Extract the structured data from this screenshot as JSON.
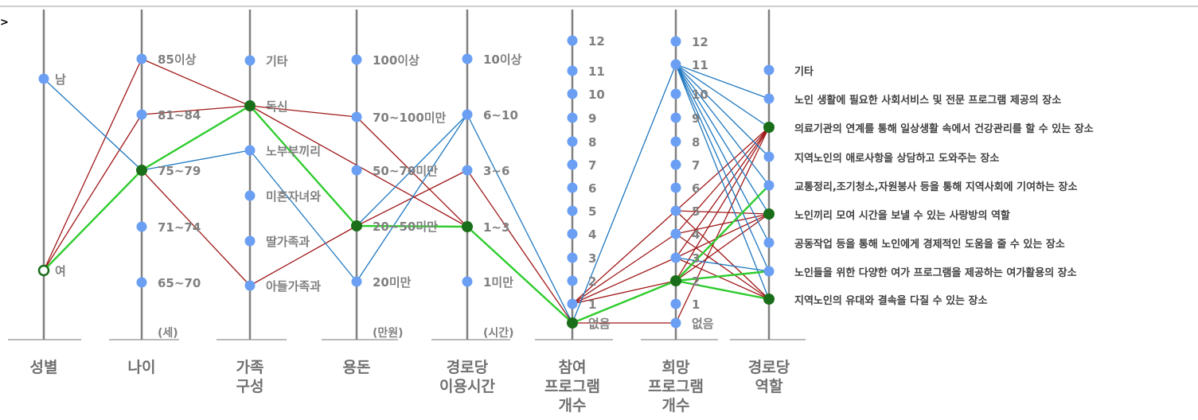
{
  "chart_data": {
    "type": "parallel-coordinates",
    "colors": {
      "axis": "#808080",
      "point": "#6b9ff3",
      "node": "#1a6e1a",
      "red": "#a01818",
      "blue": "#1f78c0",
      "green": "#2ecc2e"
    },
    "axes": [
      {
        "id": "gender",
        "title_lines": [
          "성별"
        ],
        "unit": "",
        "ticks": [
          "여",
          "남"
        ]
      },
      {
        "id": "age",
        "title_lines": [
          "나이"
        ],
        "unit": "(세)",
        "ticks": [
          "65~70",
          "71~74",
          "75~79",
          "81~84",
          "85이상"
        ]
      },
      {
        "id": "family",
        "title_lines": [
          "가족",
          "구성"
        ],
        "unit": "",
        "ticks": [
          "아들가족과",
          "딸가족과",
          "미혼자녀와",
          "노부부끼리",
          "독신",
          "기타"
        ]
      },
      {
        "id": "money",
        "title_lines": [
          "용돈"
        ],
        "unit": "(만원)",
        "ticks": [
          "20미만",
          "20~50미만",
          "50~70미만",
          "70~100미만",
          "100이상"
        ]
      },
      {
        "id": "hours",
        "title_lines": [
          "경로당",
          "이용시간"
        ],
        "unit": "(시간)",
        "ticks": [
          "1미만",
          "1~3",
          "3~6",
          "6~10",
          "10이상"
        ]
      },
      {
        "id": "join",
        "title_lines": [
          "참여",
          "프로그램",
          "개수"
        ],
        "unit": "",
        "ticks": [
          "없음",
          "1",
          "2",
          "3",
          "4",
          "5",
          "6",
          "7",
          "8",
          "9",
          "10",
          "11",
          "12"
        ]
      },
      {
        "id": "want",
        "title_lines": [
          "희망",
          "프로그램",
          "개수"
        ],
        "unit": "",
        "ticks": [
          "없음",
          "1",
          "2",
          "3",
          "4",
          "5",
          "6",
          "7",
          "8",
          "9",
          "10",
          "11",
          "12"
        ]
      },
      {
        "id": "role",
        "title_lines": [
          "경로당",
          "역할"
        ],
        "unit": "",
        "ticks": [
          "지역노인의 유대와 결속을 다질 수 있는 장소",
          "노인들을 위한 다양한 여가 프로그램을 제공하는 여가활용의 장소",
          "공동작업 등을 통해 노인에게 경제적인 도움을 줄 수 있는 장소",
          "노인끼리 모여 시간을 보낼 수 있는 사랑방의 역할",
          "교통정리,조기청소,자원봉사 등을 통해 지역사회에 기여하는 장소",
          "지역노인의 애로사항을 상담하고 도와주는 장소",
          "의료기관의 연계를 통해 일상생활 속에서 건강관리를 할 수 있는 장소",
          "노인 생활에 필요한 사회서비스 및 전문 프로그램 제공의 장소",
          "기타"
        ]
      }
    ],
    "highlight_nodes": [
      [
        "age",
        "75~79"
      ],
      [
        "family",
        "독신"
      ],
      [
        "money",
        "20~50미만"
      ],
      [
        "hours",
        "1~3"
      ],
      [
        "join",
        "없음"
      ],
      [
        "want",
        "2"
      ],
      [
        "role",
        "의료기관의 연계를 통해 일상생활 속에서 건강관리를 할 수 있는 장소"
      ],
      [
        "role",
        "노인끼리 모여 시간을 보낼 수 있는 사랑방의 역할"
      ],
      [
        "role",
        "지역노인의 유대와 결속을 다질 수 있는 장소"
      ]
    ],
    "segments": [
      {
        "color": "blue",
        "from": [
          "gender",
          "남"
        ],
        "to": [
          "age",
          "75~79"
        ]
      },
      {
        "color": "red",
        "from": [
          "gender",
          "여"
        ],
        "to": [
          "age",
          "85이상"
        ]
      },
      {
        "color": "red",
        "from": [
          "gender",
          "여"
        ],
        "to": [
          "age",
          "81~84"
        ]
      },
      {
        "color": "green",
        "from": [
          "gender",
          "여"
        ],
        "to": [
          "age",
          "75~79"
        ]
      },
      {
        "color": "red",
        "from": [
          "age",
          "85이상"
        ],
        "to": [
          "family",
          "독신"
        ]
      },
      {
        "color": "red",
        "from": [
          "age",
          "81~84"
        ],
        "to": [
          "family",
          "독신"
        ]
      },
      {
        "color": "green",
        "from": [
          "age",
          "75~79"
        ],
        "to": [
          "family",
          "독신"
        ]
      },
      {
        "color": "blue",
        "from": [
          "age",
          "75~79"
        ],
        "to": [
          "family",
          "노부부끼리"
        ]
      },
      {
        "color": "red",
        "from": [
          "age",
          "75~79"
        ],
        "to": [
          "family",
          "아들가족과"
        ]
      },
      {
        "color": "red",
        "from": [
          "family",
          "독신"
        ],
        "to": [
          "money",
          "70~100미만"
        ]
      },
      {
        "color": "red",
        "from": [
          "family",
          "독신"
        ],
        "to": [
          "hours",
          "1~3"
        ]
      },
      {
        "color": "green",
        "from": [
          "family",
          "독신"
        ],
        "to": [
          "money",
          "20~50미만"
        ]
      },
      {
        "color": "blue",
        "from": [
          "family",
          "노부부끼리"
        ],
        "to": [
          "money",
          "20미만"
        ]
      },
      {
        "color": "red",
        "from": [
          "family",
          "아들가족과"
        ],
        "to": [
          "money",
          "20~50미만"
        ]
      },
      {
        "color": "red",
        "from": [
          "money",
          "70~100미만"
        ],
        "to": [
          "hours",
          "1~3"
        ]
      },
      {
        "color": "green",
        "from": [
          "money",
          "20~50미만"
        ],
        "to": [
          "hours",
          "1~3"
        ]
      },
      {
        "color": "blue",
        "from": [
          "money",
          "20~50미만"
        ],
        "to": [
          "hours",
          "6~10"
        ]
      },
      {
        "color": "blue",
        "from": [
          "money",
          "20미만"
        ],
        "to": [
          "hours",
          "6~10"
        ]
      },
      {
        "color": "red",
        "from": [
          "money",
          "20~50미만"
        ],
        "to": [
          "hours",
          "3~6"
        ]
      },
      {
        "color": "green",
        "from": [
          "hours",
          "1~3"
        ],
        "to": [
          "join",
          "없음"
        ]
      },
      {
        "color": "red",
        "from": [
          "hours",
          "1~3"
        ],
        "to": [
          "join",
          "없음"
        ]
      },
      {
        "color": "blue",
        "from": [
          "hours",
          "6~10"
        ],
        "to": [
          "join",
          "없음"
        ]
      },
      {
        "color": "red",
        "from": [
          "hours",
          "3~6"
        ],
        "to": [
          "join",
          "없음"
        ]
      },
      {
        "color": "blue",
        "from": [
          "join",
          "없음"
        ],
        "to": [
          "want",
          "11"
        ]
      },
      {
        "color": "red",
        "from": [
          "join",
          "없음"
        ],
        "to": [
          "want",
          "없음"
        ]
      },
      {
        "color": "green",
        "from": [
          "join",
          "없음"
        ],
        "to": [
          "want",
          "2"
        ]
      },
      {
        "color": "red",
        "from": [
          "join",
          "1"
        ],
        "to": [
          "want",
          "5"
        ]
      },
      {
        "color": "red",
        "from": [
          "join",
          "1"
        ],
        "to": [
          "want",
          "4"
        ]
      },
      {
        "color": "red",
        "from": [
          "join",
          "1"
        ],
        "to": [
          "want",
          "3"
        ]
      },
      {
        "color": "red",
        "from": [
          "join",
          "1"
        ],
        "to": [
          "want",
          "2"
        ]
      },
      {
        "color": "blue",
        "from": [
          "want",
          "11"
        ],
        "to": [
          "role",
          "노인 생활에 필요한 사회서비스 및 전문 프로그램 제공의 장소"
        ]
      },
      {
        "color": "blue",
        "from": [
          "want",
          "11"
        ],
        "to": [
          "role",
          "의료기관의 연계를 통해 일상생활 속에서 건강관리를 할 수 있는 장소"
        ]
      },
      {
        "color": "blue",
        "from": [
          "want",
          "11"
        ],
        "to": [
          "role",
          "지역노인의 애로사항을 상담하고 도와주는 장소"
        ]
      },
      {
        "color": "blue",
        "from": [
          "want",
          "11"
        ],
        "to": [
          "role",
          "교통정리,조기청소,자원봉사 등을 통해 지역사회에 기여하는 장소"
        ]
      },
      {
        "color": "blue",
        "from": [
          "want",
          "11"
        ],
        "to": [
          "role",
          "노인끼리 모여 시간을 보낼 수 있는 사랑방의 역할"
        ]
      },
      {
        "color": "blue",
        "from": [
          "want",
          "11"
        ],
        "to": [
          "role",
          "공동작업 등을 통해 노인에게 경제적인 도움을 줄 수 있는 장소"
        ]
      },
      {
        "color": "blue",
        "from": [
          "want",
          "11"
        ],
        "to": [
          "role",
          "노인들을 위한 다양한 여가 프로그램을 제공하는 여가활용의 장소"
        ]
      },
      {
        "color": "blue",
        "from": [
          "want",
          "11"
        ],
        "to": [
          "role",
          "지역노인의 유대와 결속을 다질 수 있는 장소"
        ]
      },
      {
        "color": "red",
        "from": [
          "want",
          "5"
        ],
        "to": [
          "role",
          "의료기관의 연계를 통해 일상생활 속에서 건강관리를 할 수 있는 장소"
        ]
      },
      {
        "color": "red",
        "from": [
          "want",
          "5"
        ],
        "to": [
          "role",
          "노인끼리 모여 시간을 보낼 수 있는 사랑방의 역할"
        ]
      },
      {
        "color": "red",
        "from": [
          "want",
          "5"
        ],
        "to": [
          "role",
          "지역노인의 유대와 결속을 다질 수 있는 장소"
        ]
      },
      {
        "color": "red",
        "from": [
          "want",
          "4"
        ],
        "to": [
          "role",
          "의료기관의 연계를 통해 일상생활 속에서 건강관리를 할 수 있는 장소"
        ]
      },
      {
        "color": "red",
        "from": [
          "want",
          "4"
        ],
        "to": [
          "role",
          "노인끼리 모여 시간을 보낼 수 있는 사랑방의 역할"
        ]
      },
      {
        "color": "red",
        "from": [
          "want",
          "4"
        ],
        "to": [
          "role",
          "지역노인의 유대와 결속을 다질 수 있는 장소"
        ]
      },
      {
        "color": "red",
        "from": [
          "want",
          "3"
        ],
        "to": [
          "role",
          "의료기관의 연계를 통해 일상생활 속에서 건강관리를 할 수 있는 장소"
        ]
      },
      {
        "color": "red",
        "from": [
          "want",
          "3"
        ],
        "to": [
          "role",
          "노인끼리 모여 시간을 보낼 수 있는 사랑방의 역할"
        ]
      },
      {
        "color": "red",
        "from": [
          "want",
          "3"
        ],
        "to": [
          "role",
          "지역노인의 유대와 결속을 다질 수 있는 장소"
        ]
      },
      {
        "color": "blue",
        "from": [
          "want",
          "3"
        ],
        "to": [
          "role",
          "노인들을 위한 다양한 여가 프로그램을 제공하는 여가활용의 장소"
        ]
      },
      {
        "color": "red",
        "from": [
          "want",
          "2"
        ],
        "to": [
          "role",
          "의료기관의 연계를 통해 일상생활 속에서 건강관리를 할 수 있는 장소"
        ]
      },
      {
        "color": "red",
        "from": [
          "want",
          "2"
        ],
        "to": [
          "role",
          "노인끼리 모여 시간을 보낼 수 있는 사랑방의 역할"
        ]
      },
      {
        "color": "green",
        "from": [
          "want",
          "2"
        ],
        "to": [
          "role",
          "교통정리,조기청소,자원봉사 등을 통해 지역사회에 기여하는 장소"
        ]
      },
      {
        "color": "green",
        "from": [
          "want",
          "2"
        ],
        "to": [
          "role",
          "노인들을 위한 다양한 여가 프로그램을 제공하는 여가활용의 장소"
        ]
      },
      {
        "color": "green",
        "from": [
          "want",
          "2"
        ],
        "to": [
          "role",
          "지역노인의 유대와 결속을 다질 수 있는 장소"
        ]
      },
      {
        "color": "red",
        "from": [
          "want",
          "없음"
        ],
        "to": [
          "role",
          "의료기관의 연계를 통해 일상생활 속에서 건강관리를 할 수 있는 장소"
        ]
      }
    ]
  }
}
